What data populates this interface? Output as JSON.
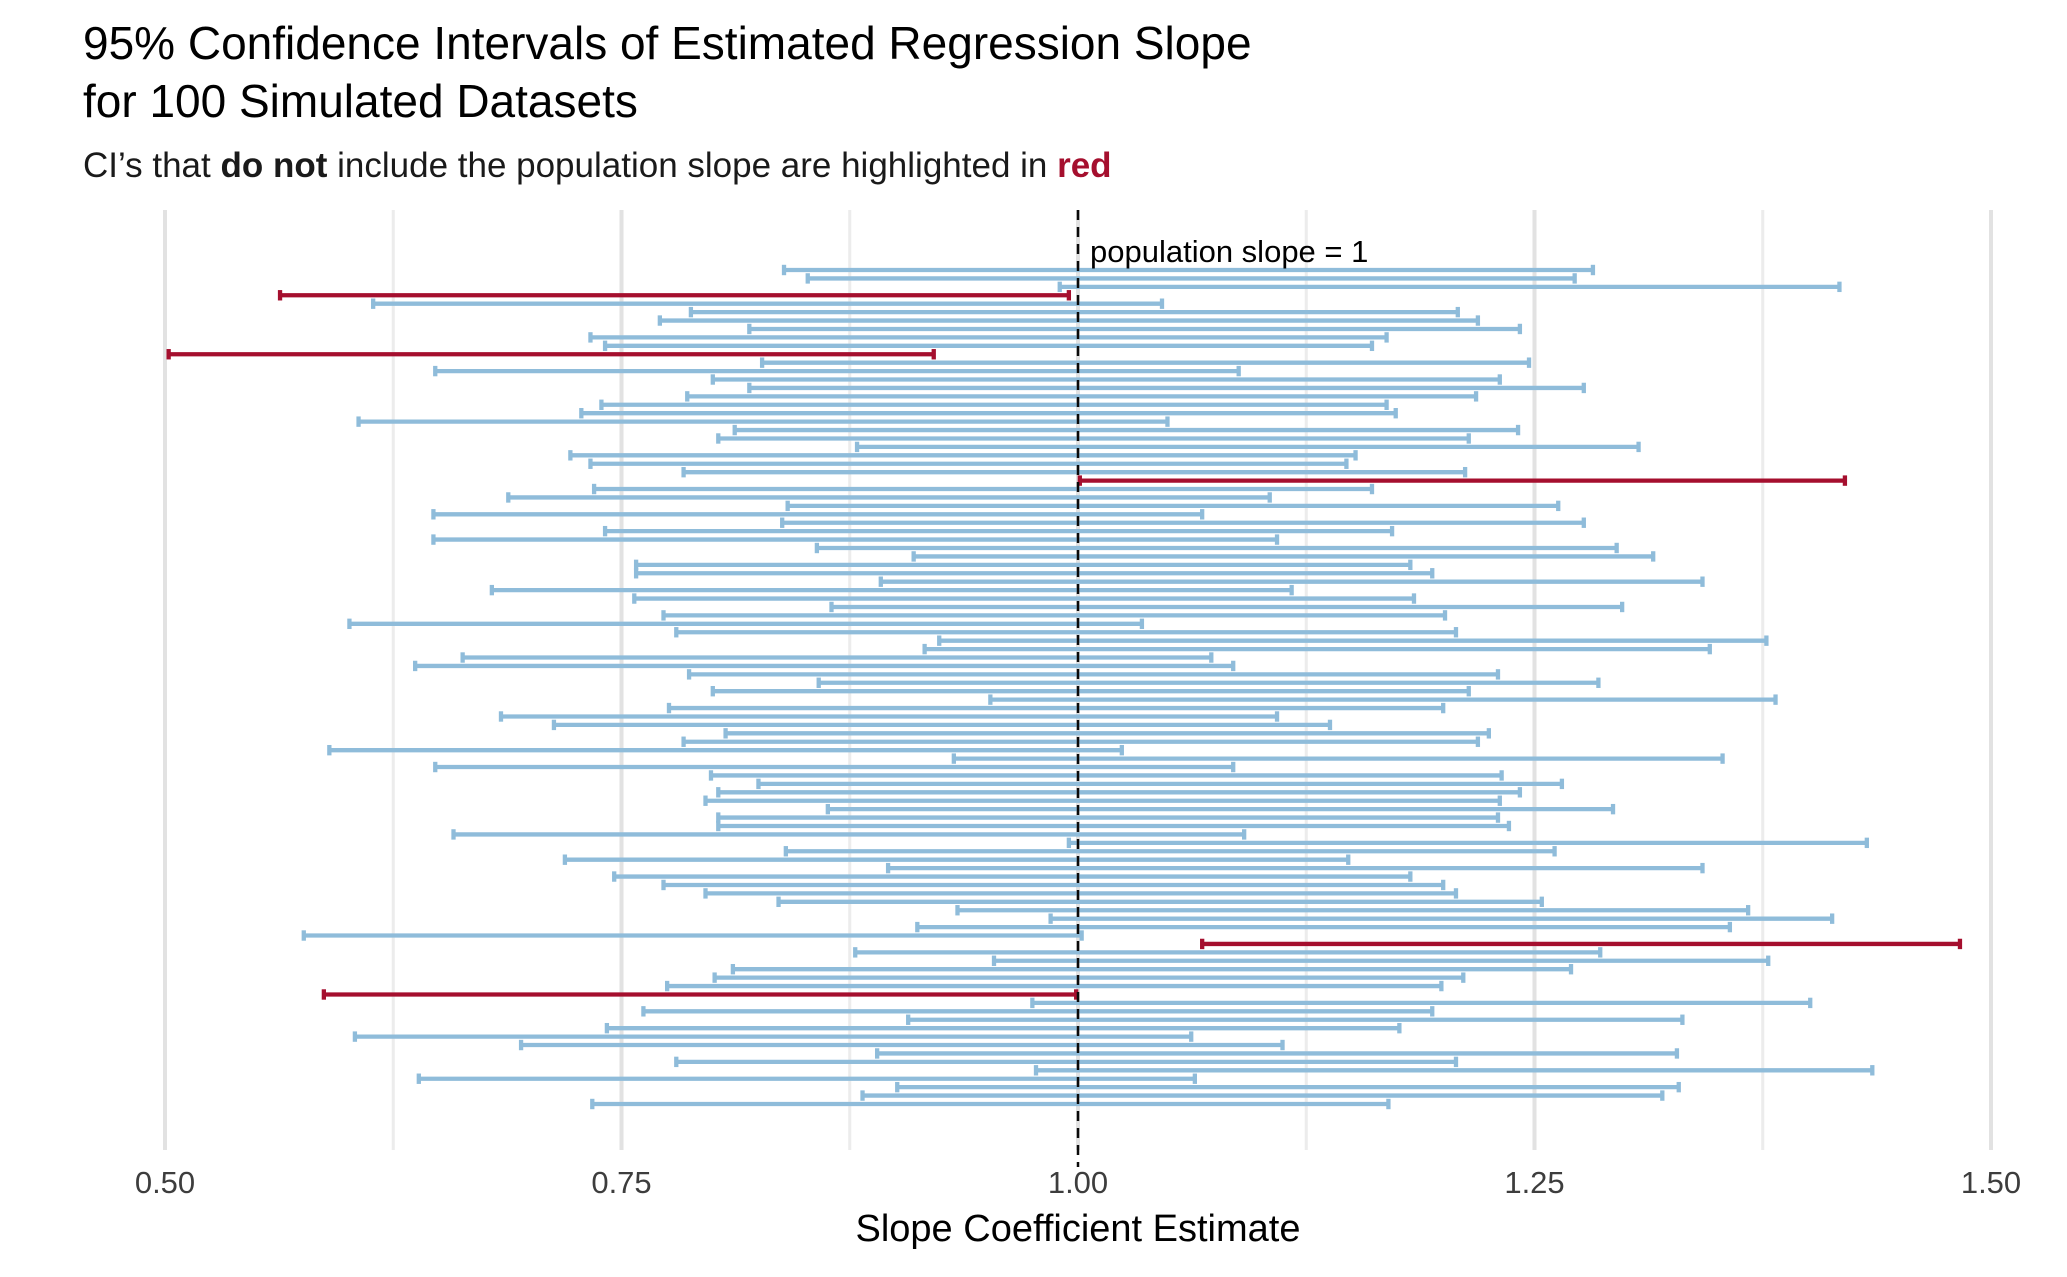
{
  "header": {
    "title_line1": "95% Confidence Intervals of Estimated Regression Slope",
    "title_line2": "for 100 Simulated Datasets",
    "subtitle_pre": "CI’s that ",
    "subtitle_bold": "do not",
    "subtitle_mid": " include the population slope are highlighted in ",
    "subtitle_red": "red"
  },
  "chart_data": {
    "type": "errorbar",
    "orientation": "horizontal",
    "title": "95% Confidence Intervals of Estimated Regression Slope for 100 Simulated Datasets",
    "subtitle": "CI’s that do not include the population slope are highlighted in red",
    "xlabel": "Slope Coefficient Estimate",
    "ylabel": "",
    "xlim": [
      0.493,
      1.53
    ],
    "grid": "vertical-only",
    "legend": "none",
    "x_ticks": [
      {
        "value": 0.5,
        "label": "0.50"
      },
      {
        "value": 0.75,
        "label": "0.75"
      },
      {
        "value": 1.0,
        "label": "1.00"
      },
      {
        "value": 1.25,
        "label": "1.25"
      },
      {
        "value": 1.5,
        "label": "1.50"
      }
    ],
    "x_minor_gridlines": [
      0.625,
      0.875,
      1.125,
      1.375
    ],
    "reference_line": {
      "value": 1,
      "label": "population slope = 1",
      "style": "dashed"
    },
    "n_intervals": 100,
    "n_miss": 5,
    "interval_format": [
      "lower",
      "upper",
      "miss_flag (1 = CI excludes population slope, drawn red)"
    ],
    "intervals": [
      [
        0.839,
        1.282,
        0
      ],
      [
        0.852,
        1.272,
        0
      ],
      [
        0.99,
        1.417,
        0
      ],
      [
        0.563,
        0.995,
        1
      ],
      [
        0.614,
        1.046,
        0
      ],
      [
        0.788,
        1.208,
        0
      ],
      [
        0.771,
        1.219,
        0
      ],
      [
        0.82,
        1.242,
        0
      ],
      [
        0.733,
        1.169,
        0
      ],
      [
        0.741,
        1.161,
        0
      ],
      [
        0.502,
        0.921,
        1
      ],
      [
        0.827,
        1.247,
        0
      ],
      [
        0.648,
        1.088,
        0
      ],
      [
        0.8,
        1.231,
        0
      ],
      [
        0.82,
        1.277,
        0
      ],
      [
        0.786,
        1.218,
        0
      ],
      [
        0.739,
        1.169,
        0
      ],
      [
        0.728,
        1.174,
        0
      ],
      [
        0.606,
        1.049,
        0
      ],
      [
        0.812,
        1.241,
        0
      ],
      [
        0.803,
        1.214,
        0
      ],
      [
        0.879,
        1.307,
        0
      ],
      [
        0.722,
        1.152,
        0
      ],
      [
        0.733,
        1.147,
        0
      ],
      [
        0.784,
        1.212,
        0
      ],
      [
        1.001,
        1.42,
        1
      ],
      [
        0.735,
        1.161,
        0
      ],
      [
        0.688,
        1.105,
        0
      ],
      [
        0.841,
        1.263,
        0
      ],
      [
        0.647,
        1.068,
        0
      ],
      [
        0.838,
        1.277,
        0
      ],
      [
        0.741,
        1.172,
        0
      ],
      [
        0.647,
        1.109,
        0
      ],
      [
        0.857,
        1.295,
        0
      ],
      [
        0.91,
        1.315,
        0
      ],
      [
        0.758,
        1.182,
        0
      ],
      [
        0.758,
        1.194,
        0
      ],
      [
        0.892,
        1.342,
        0
      ],
      [
        0.679,
        1.117,
        0
      ],
      [
        0.757,
        1.184,
        0
      ],
      [
        0.865,
        1.298,
        0
      ],
      [
        0.773,
        1.201,
        0
      ],
      [
        0.601,
        1.035,
        0
      ],
      [
        0.78,
        1.207,
        0
      ],
      [
        0.924,
        1.377,
        0
      ],
      [
        0.916,
        1.346,
        0
      ],
      [
        0.663,
        1.073,
        0
      ],
      [
        0.637,
        1.085,
        0
      ],
      [
        0.787,
        1.23,
        0
      ],
      [
        0.858,
        1.285,
        0
      ],
      [
        0.8,
        1.214,
        0
      ],
      [
        0.952,
        1.382,
        0
      ],
      [
        0.776,
        1.2,
        0
      ],
      [
        0.684,
        1.109,
        0
      ],
      [
        0.713,
        1.138,
        0
      ],
      [
        0.807,
        1.225,
        0
      ],
      [
        0.784,
        1.219,
        0
      ],
      [
        0.59,
        1.024,
        0
      ],
      [
        0.932,
        1.353,
        0
      ],
      [
        0.648,
        1.085,
        0
      ],
      [
        0.799,
        1.232,
        0
      ],
      [
        0.825,
        1.265,
        0
      ],
      [
        0.803,
        1.242,
        0
      ],
      [
        0.796,
        1.231,
        0
      ],
      [
        0.863,
        1.293,
        0
      ],
      [
        0.803,
        1.23,
        0
      ],
      [
        0.803,
        1.236,
        0
      ],
      [
        0.658,
        1.091,
        0
      ],
      [
        0.995,
        1.432,
        0
      ],
      [
        0.84,
        1.261,
        0
      ],
      [
        0.719,
        1.148,
        0
      ],
      [
        0.896,
        1.342,
        0
      ],
      [
        0.746,
        1.182,
        0
      ],
      [
        0.773,
        1.2,
        0
      ],
      [
        0.796,
        1.207,
        0
      ],
      [
        0.836,
        1.254,
        0
      ],
      [
        0.934,
        1.367,
        0
      ],
      [
        0.985,
        1.413,
        0
      ],
      [
        0.912,
        1.357,
        0
      ],
      [
        0.576,
        1.002,
        0
      ],
      [
        1.068,
        1.483,
        1
      ],
      [
        0.878,
        1.286,
        0
      ],
      [
        0.954,
        1.378,
        0
      ],
      [
        0.811,
        1.27,
        0
      ],
      [
        0.801,
        1.211,
        0
      ],
      [
        0.775,
        1.199,
        0
      ],
      [
        0.587,
        0.999,
        1
      ],
      [
        0.975,
        1.401,
        0
      ],
      [
        0.762,
        1.194,
        0
      ],
      [
        0.907,
        1.331,
        0
      ],
      [
        0.742,
        1.176,
        0
      ],
      [
        0.604,
        1.062,
        0
      ],
      [
        0.695,
        1.112,
        0
      ],
      [
        0.89,
        1.328,
        0
      ],
      [
        0.78,
        1.207,
        0
      ],
      [
        0.977,
        1.435,
        0
      ],
      [
        0.639,
        1.064,
        0
      ],
      [
        0.901,
        1.329,
        0
      ],
      [
        0.882,
        1.32,
        0
      ],
      [
        0.734,
        1.17,
        0
      ]
    ],
    "colors": {
      "ci_blue": "#8FBCDA",
      "ci_miss_red": "#A50F2E",
      "grid_major": "#E2E2E2",
      "grid_minor": "#ECECEC",
      "reference_line": "#0A0A0A",
      "tick_label": "#3D3D3D"
    }
  }
}
